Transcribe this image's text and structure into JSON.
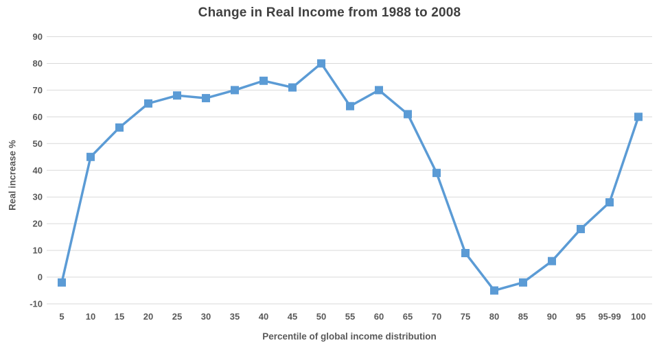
{
  "chart_data": {
    "type": "line",
    "title": "Change in Real Income from 1988 to 2008",
    "xlabel": "Percentile of global income distribution",
    "ylabel": "Real increase %",
    "categories": [
      "5",
      "10",
      "15",
      "20",
      "25",
      "30",
      "35",
      "40",
      "45",
      "50",
      "55",
      "60",
      "65",
      "70",
      "75",
      "80",
      "85",
      "90",
      "95",
      "95-99",
      "100"
    ],
    "values": [
      -2,
      45,
      56,
      65,
      68,
      67,
      70,
      73.5,
      71,
      80,
      64,
      70,
      61,
      39,
      9,
      -5,
      -2,
      6,
      18,
      28,
      60
    ],
    "ylim": [
      -10,
      90
    ],
    "yticks": [
      90,
      80,
      70,
      60,
      50,
      40,
      30,
      20,
      10,
      0,
      -10
    ],
    "grid": true,
    "legend": "none",
    "marker": "square",
    "colors": {
      "line": "#5B9BD5",
      "marker": "#5B9BD5",
      "gridline": "#D9D9D9",
      "title_text": "#404040",
      "axis_text": "#595959"
    }
  }
}
